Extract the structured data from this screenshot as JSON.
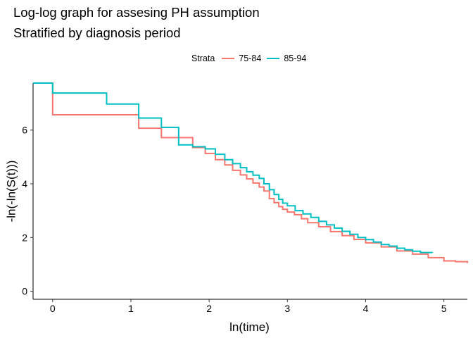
{
  "chart_data": {
    "type": "line",
    "step": true,
    "title": "Log-log graph for assesing PH assumption",
    "subtitle": "Stratified by diagnosis period",
    "xlabel": "ln(time)",
    "ylabel": "-ln(-ln(S(t)))",
    "xlim": [
      -0.25,
      5.3
    ],
    "ylim": [
      -0.3,
      7.75
    ],
    "xticks": [
      0,
      1,
      2,
      3,
      4,
      5
    ],
    "yticks": [
      0,
      2,
      4,
      6
    ],
    "grid": false,
    "legend": {
      "title": "Strata",
      "position": "top"
    },
    "series": [
      {
        "name": "75-84",
        "color": "#F8766D",
        "x": [
          -0.25,
          0,
          1.1,
          1.39,
          1.79,
          1.95,
          2.08,
          2.2,
          2.3,
          2.4,
          2.48,
          2.56,
          2.64,
          2.7,
          2.77,
          2.83,
          2.89,
          2.94,
          3.0,
          3.09,
          3.18,
          3.26,
          3.4,
          3.55,
          3.7,
          3.85,
          4.0,
          4.2,
          4.4,
          4.6,
          4.8,
          5.0,
          5.15,
          5.3
        ],
        "y": [
          7.75,
          6.57,
          6.07,
          5.72,
          5.35,
          5.13,
          4.9,
          4.7,
          4.5,
          4.33,
          4.18,
          4.03,
          3.88,
          3.73,
          3.45,
          3.3,
          3.15,
          3.05,
          2.95,
          2.85,
          2.7,
          2.55,
          2.4,
          2.22,
          2.07,
          1.93,
          1.8,
          1.65,
          1.5,
          1.38,
          1.25,
          1.13,
          1.1,
          1.05
        ]
      },
      {
        "name": "85-94",
        "color": "#00BFC4",
        "x": [
          -0.25,
          0,
          0.69,
          1.1,
          1.39,
          1.61,
          1.79,
          1.95,
          2.08,
          2.2,
          2.3,
          2.4,
          2.48,
          2.56,
          2.64,
          2.7,
          2.77,
          2.83,
          2.89,
          2.94,
          3.0,
          3.1,
          3.2,
          3.3,
          3.4,
          3.5,
          3.6,
          3.7,
          3.8,
          3.9,
          4.0,
          4.1,
          4.2,
          4.3,
          4.4,
          4.5,
          4.6,
          4.7,
          4.85
        ],
        "y": [
          7.75,
          7.38,
          6.97,
          6.45,
          6.1,
          5.45,
          5.38,
          5.3,
          5.1,
          4.9,
          4.75,
          4.6,
          4.45,
          4.32,
          4.2,
          4.0,
          3.78,
          3.6,
          3.42,
          3.28,
          3.18,
          3.0,
          2.88,
          2.75,
          2.6,
          2.47,
          2.35,
          2.23,
          2.12,
          2.0,
          1.92,
          1.83,
          1.74,
          1.68,
          1.6,
          1.54,
          1.49,
          1.44,
          1.43
        ]
      }
    ]
  }
}
